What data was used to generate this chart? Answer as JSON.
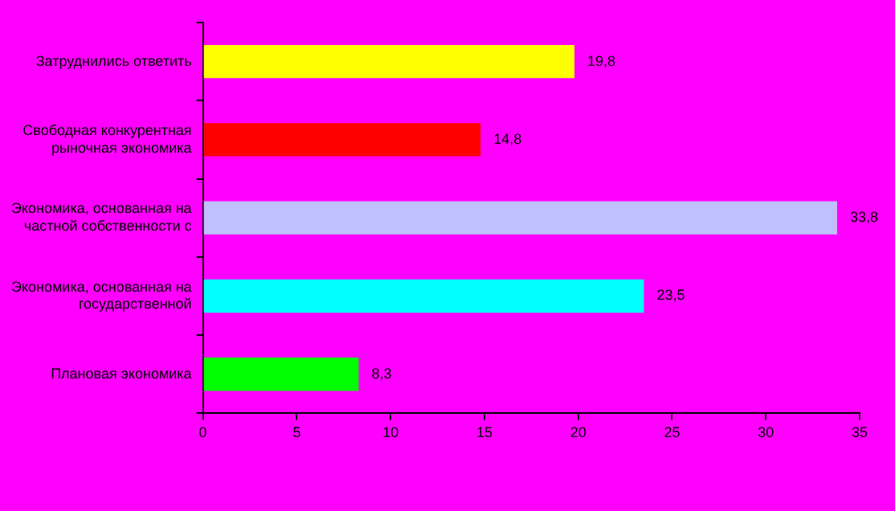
{
  "chart_data": {
    "type": "bar",
    "orientation": "horizontal",
    "categories": [
      "Затруднились ответить",
      "Свободная конкурентная рыночная экономика",
      "Экономика, основанная на частной собственности с",
      "Экономика, основанная на государственной",
      "Плановая экономика"
    ],
    "values": [
      19.8,
      14.8,
      33.8,
      23.5,
      8.3
    ],
    "colors": [
      "#ffff00",
      "#ff0000",
      "#c0c0ff",
      "#00ffff",
      "#00ff00"
    ],
    "value_labels": [
      "19,8",
      "14,8",
      "33,8",
      "23,5",
      "8,3"
    ],
    "xlim": [
      0,
      35
    ],
    "xticks": [
      0,
      5,
      10,
      15,
      20,
      25,
      30,
      35
    ],
    "grid": false,
    "legend": false
  }
}
